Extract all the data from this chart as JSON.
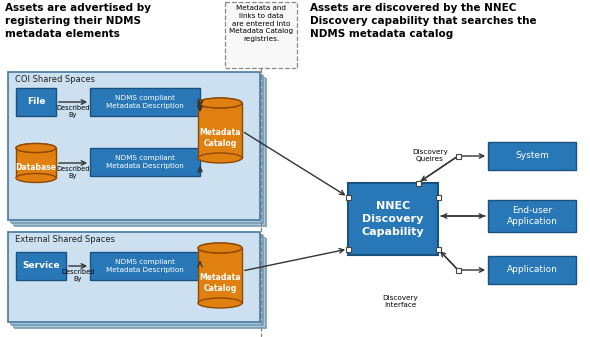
{
  "bg_color": "#ffffff",
  "light_blue_bg": "#cce0f0",
  "blue_box": "#2878b8",
  "orange_color": "#e08010",
  "title_left": "Assets are advertised by\nregistering their NDMS\nmetadata elements",
  "title_right": "Assets are discovered by the NNEC\nDiscovery capability that searches the\nNDMS metadata catalog",
  "note_text": "Metadata and\nlinks to data\nare entered into\nMetadata Catalog\nregistries.",
  "coi_label": "COI Shared Spaces",
  "ext_label": "External Shared Spaces",
  "file_label": "File",
  "database_label": "Database",
  "service_label": "Service",
  "ndms_label": "NDMS compliant\nMetadata Description",
  "metacat_label": "Metadata\nCatalog",
  "nnec_label": "NNEC\nDiscovery\nCapability",
  "system_label": "System",
  "enduser_label": "End-user\nApplication",
  "app_label": "Application",
  "disc_queries_label": "Discovery\nQueires",
  "disc_interface_label": "Discovery\nInterface"
}
